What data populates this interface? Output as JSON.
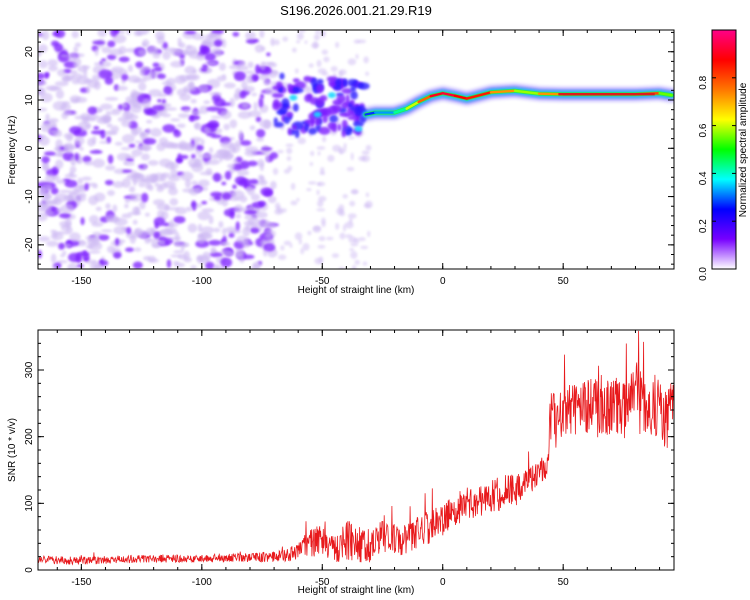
{
  "title": "S196.2026.001.21.29.R19",
  "colors": {
    "spectral_cloud_light": "#c9b3f2",
    "spectral_cloud_dark": "#7b1fff",
    "snr_line": "#e8191c",
    "signal_core": "#e21a1a",
    "signal_halo": "#13c8e8"
  },
  "chart_data": [
    {
      "type": "heatmap",
      "name": "spectrogram",
      "xlabel": "Height of straight line (km)",
      "ylabel": "Frequency (Hz)",
      "xlim": [
        -168,
        96
      ],
      "ylim": [
        -25,
        24.5
      ],
      "x_ticks": [
        -150,
        -100,
        -50,
        0,
        50
      ],
      "x_tick_labels": [
        "-150",
        "-100",
        "-50",
        "0",
        "50"
      ],
      "y_ticks": [
        -20,
        -10,
        0,
        10,
        20
      ],
      "y_tick_labels": [
        "-20",
        "-10",
        "0",
        "10",
        "20"
      ],
      "colorbar": {
        "label": "Normalized spectral amplitude",
        "range": [
          0,
          1
        ],
        "ticks": [
          0.0,
          0.2,
          0.4,
          0.6,
          0.8
        ],
        "tick_labels": [
          "0.0",
          "0.2",
          "0.4",
          "0.6",
          "0.8"
        ],
        "colormap": [
          "#ffffff",
          "#7700ff",
          "#0000ff",
          "#00ffff",
          "#00ff00",
          "#ffff00",
          "#ff7700",
          "#ff0000",
          "#ff0088"
        ]
      },
      "noise_region": {
        "x_range": [
          -168,
          -30
        ],
        "freq_range": [
          -25,
          24.5
        ],
        "amplitude_range": [
          0.0,
          0.15
        ]
      },
      "signal_track": {
        "x": [
          -32,
          -28,
          -20,
          -15,
          -10,
          -5,
          0,
          5,
          10,
          20,
          30,
          40,
          50,
          60,
          70,
          80,
          90,
          95
        ],
        "freq": [
          7.0,
          7.4,
          7.4,
          8.2,
          9.6,
          10.8,
          11.4,
          10.9,
          10.3,
          11.6,
          11.9,
          11.3,
          11.2,
          11.2,
          11.2,
          11.2,
          11.4,
          11.0
        ],
        "amplitude": [
          0.25,
          0.3,
          0.35,
          0.5,
          0.7,
          0.85,
          0.95,
          0.9,
          0.85,
          0.85,
          0.6,
          0.55,
          0.9,
          0.9,
          0.9,
          0.9,
          0.7,
          0.4
        ]
      }
    },
    {
      "type": "line",
      "name": "snr",
      "xlabel": "Height of straight line (km)",
      "ylabel": "SNR (10 * v/v)",
      "xlim": [
        -168,
        96
      ],
      "ylim": [
        0,
        360
      ],
      "x_ticks": [
        -150,
        -100,
        -50,
        0,
        50
      ],
      "x_tick_labels": [
        "-150",
        "-100",
        "-50",
        "0",
        "50"
      ],
      "y_ticks": [
        0,
        100,
        200,
        300
      ],
      "y_tick_labels": [
        "0",
        "100",
        "200",
        "300"
      ],
      "series": [
        {
          "name": "SNR",
          "x": [
            -168,
            -150,
            -130,
            -110,
            -90,
            -70,
            -62,
            -55,
            -50,
            -45,
            -40,
            -35,
            -30,
            -25,
            -20,
            -15,
            -10,
            -5,
            0,
            5,
            10,
            15,
            20,
            25,
            30,
            35,
            40,
            43,
            45,
            47,
            50,
            55,
            60,
            65,
            70,
            75,
            80,
            85,
            90,
            93,
            96
          ],
          "y": [
            15,
            14,
            16,
            17,
            18,
            20,
            25,
            40,
            45,
            30,
            45,
            40,
            35,
            55,
            45,
            45,
            60,
            65,
            75,
            90,
            100,
            105,
            110,
            115,
            120,
            130,
            145,
            155,
            235,
            220,
            235,
            240,
            245,
            240,
            250,
            240,
            260,
            250,
            245,
            220,
            265
          ],
          "noise_amplitude": [
            6,
            6,
            6,
            6,
            6,
            8,
            12,
            20,
            25,
            20,
            30,
            28,
            25,
            30,
            25,
            22,
            25,
            25,
            25,
            25,
            25,
            25,
            25,
            25,
            25,
            20,
            20,
            20,
            40,
            40,
            40,
            40,
            45,
            45,
            45,
            45,
            55,
            50,
            45,
            45,
            45
          ]
        }
      ]
    }
  ]
}
